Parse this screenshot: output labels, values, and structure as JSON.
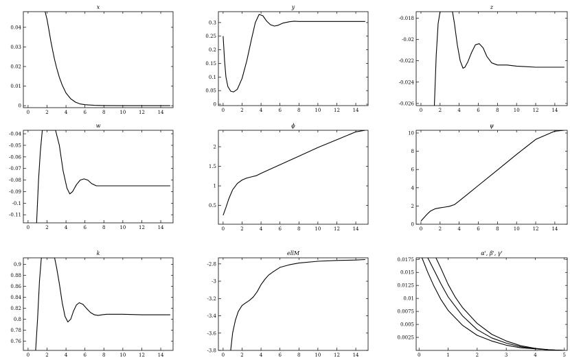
{
  "chart_data": [
    {
      "type": "line",
      "title": "x",
      "xlabel": "",
      "ylabel": "",
      "xlim": [
        -0.5,
        15.3
      ],
      "ylim": [
        -0.001,
        0.048
      ],
      "xticks": [
        0,
        2,
        4,
        6,
        8,
        10,
        12,
        14
      ],
      "xtick_labels": [
        "0",
        "2",
        "4",
        "6",
        "8",
        "10",
        "12",
        "14"
      ],
      "yticks": [
        0,
        0.01,
        0.02,
        0.03,
        0.04
      ],
      "ytick_labels": [
        "0",
        "0.01",
        "0.02",
        "0.03",
        "0.04"
      ],
      "series": [
        {
          "x": [
            1.8,
            2.0,
            2.2,
            2.4,
            2.6,
            2.8,
            3.0,
            3.3,
            3.6,
            4.0,
            4.5,
            5.0,
            5.5,
            6.0,
            7.0,
            8.0,
            10.0,
            12.0,
            15.0
          ],
          "y": [
            0.048,
            0.044,
            0.0385,
            0.033,
            0.028,
            0.0235,
            0.0195,
            0.0145,
            0.0105,
            0.0065,
            0.0035,
            0.0018,
            0.0009,
            0.0005,
            0.0002,
            0.0001,
            0.0,
            0.0,
            0.0
          ]
        }
      ]
    },
    {
      "type": "line",
      "title": "y",
      "xlabel": "",
      "ylabel": "",
      "xlim": [
        -0.5,
        15.3
      ],
      "ylim": [
        -0.005,
        0.34
      ],
      "xticks": [
        0,
        2,
        4,
        6,
        8,
        10,
        12,
        14
      ],
      "xtick_labels": [
        "0",
        "2",
        "4",
        "6",
        "8",
        "10",
        "12",
        "14"
      ],
      "yticks": [
        0,
        0.05,
        0.1,
        0.15,
        0.2,
        0.25,
        0.3
      ],
      "ytick_labels": [
        "0",
        "0.05",
        "0.1",
        "0.15",
        "0.2",
        "0.25",
        "0.3"
      ],
      "series": [
        {
          "x": [
            0.0,
            0.15,
            0.3,
            0.5,
            0.8,
            1.1,
            1.5,
            2.0,
            2.5,
            3.0,
            3.4,
            3.8,
            4.2,
            4.6,
            5.0,
            5.4,
            5.8,
            6.3,
            7.0,
            7.5,
            8.0,
            10.0,
            12.0,
            15.0
          ],
          "y": [
            0.25,
            0.16,
            0.1,
            0.065,
            0.048,
            0.045,
            0.055,
            0.095,
            0.16,
            0.24,
            0.3,
            0.33,
            0.325,
            0.305,
            0.292,
            0.287,
            0.29,
            0.298,
            0.303,
            0.305,
            0.304,
            0.304,
            0.304,
            0.304
          ]
        }
      ]
    },
    {
      "type": "line",
      "title": "z",
      "xlabel": "",
      "ylabel": "",
      "xlim": [
        -0.5,
        15.3
      ],
      "ylim": [
        -0.0262,
        -0.0174
      ],
      "xticks": [
        0,
        2,
        4,
        6,
        8,
        10,
        12,
        14
      ],
      "xtick_labels": [
        "0",
        "2",
        "4",
        "6",
        "8",
        "10",
        "12",
        "14"
      ],
      "yticks": [
        -0.018,
        -0.02,
        -0.022,
        -0.024,
        -0.026
      ],
      "ytick_labels": [
        "-0.018",
        "-0.02",
        "-0.022",
        "-0.024",
        "-0.026"
      ],
      "series": [
        {
          "x": [
            1.4,
            1.6,
            1.8,
            2.0,
            3.3,
            3.5,
            3.8,
            4.1,
            4.4,
            4.6,
            4.9,
            5.3,
            5.7,
            6.1,
            6.5,
            6.9,
            7.4,
            8.0,
            9.0,
            10.0,
            12.0,
            15.0
          ],
          "y": [
            -0.0262,
            -0.0215,
            -0.0185,
            -0.0174,
            -0.0174,
            -0.0185,
            -0.0205,
            -0.022,
            -0.0227,
            -0.0226,
            -0.0221,
            -0.0212,
            -0.0205,
            -0.0204,
            -0.0208,
            -0.0216,
            -0.0222,
            -0.0224,
            -0.0224,
            -0.0225,
            -0.0226,
            -0.0226
          ]
        }
      ]
    },
    {
      "type": "line",
      "title": "w",
      "xlabel": "",
      "ylabel": "",
      "xlim": [
        -0.5,
        15.3
      ],
      "ylim": [
        -0.117,
        -0.037
      ],
      "xticks": [
        0,
        2,
        4,
        6,
        8,
        10,
        12,
        14
      ],
      "xtick_labels": [
        "0",
        "2",
        "4",
        "6",
        "8",
        "10",
        "12",
        "14"
      ],
      "yticks": [
        -0.04,
        -0.05,
        -0.06,
        -0.07,
        -0.08,
        -0.09,
        -0.1,
        -0.11
      ],
      "ytick_labels": [
        "-0.04",
        "-0.05",
        "-0.06",
        "-0.07",
        "-0.08",
        "-0.09",
        "-0.1",
        "-0.11"
      ],
      "series": [
        {
          "x": [
            0.9,
            1.1,
            1.3,
            1.5,
            2.0,
            2.5,
            2.9,
            3.3,
            3.7,
            4.1,
            4.4,
            4.7,
            5.1,
            5.5,
            5.9,
            6.3,
            6.7,
            7.2,
            7.7,
            8.0,
            10.0,
            12.0,
            15.0
          ],
          "y": [
            -0.117,
            -0.08,
            -0.055,
            -0.037,
            -0.037,
            -0.037,
            -0.037,
            -0.05,
            -0.072,
            -0.087,
            -0.092,
            -0.09,
            -0.084,
            -0.08,
            -0.079,
            -0.08,
            -0.083,
            -0.085,
            -0.085,
            -0.085,
            -0.085,
            -0.085,
            -0.085
          ]
        }
      ]
    },
    {
      "type": "line",
      "title": "ϕ",
      "xlabel": "",
      "ylabel": "",
      "xlim": [
        -0.5,
        15.3
      ],
      "ylim": [
        0.02,
        2.42
      ],
      "xticks": [
        0,
        2,
        4,
        6,
        8,
        10,
        12,
        14
      ],
      "xtick_labels": [
        "0",
        "2",
        "4",
        "6",
        "8",
        "10",
        "12",
        "14"
      ],
      "yticks": [
        0.5,
        1,
        1.5,
        2
      ],
      "ytick_labels": [
        "0.5",
        "1",
        "1.5",
        "2"
      ],
      "series": [
        {
          "x": [
            0.0,
            0.3,
            0.6,
            1.0,
            1.5,
            2.0,
            2.5,
            3.0,
            3.5,
            4.0,
            5.0,
            6.0,
            8.0,
            10.0,
            12.0,
            14.0,
            15.0
          ],
          "y": [
            0.25,
            0.45,
            0.67,
            0.9,
            1.06,
            1.15,
            1.2,
            1.23,
            1.26,
            1.32,
            1.43,
            1.54,
            1.76,
            1.98,
            2.18,
            2.38,
            2.42
          ]
        }
      ]
    },
    {
      "type": "line",
      "title": "ψ",
      "xlabel": "",
      "ylabel": "",
      "xlim": [
        -0.5,
        15.3
      ],
      "ylim": [
        0.0,
        10.3
      ],
      "xticks": [
        0,
        2,
        4,
        6,
        8,
        10,
        12,
        14
      ],
      "xtick_labels": [
        "0",
        "2",
        "4",
        "6",
        "8",
        "10",
        "12",
        "14"
      ],
      "yticks": [
        0,
        2,
        4,
        6,
        8,
        10
      ],
      "ytick_labels": [
        "0",
        "2",
        "4",
        "6",
        "8",
        "10"
      ],
      "series": [
        {
          "x": [
            0.0,
            0.3,
            0.6,
            1.0,
            1.5,
            2.0,
            2.5,
            3.0,
            3.5,
            4.0,
            5.0,
            6.0,
            8.0,
            10.0,
            12.0,
            14.0,
            15.0
          ],
          "y": [
            0.35,
            0.7,
            1.05,
            1.45,
            1.7,
            1.8,
            1.88,
            1.97,
            2.15,
            2.55,
            3.4,
            4.25,
            5.95,
            7.65,
            9.3,
            10.2,
            10.3
          ]
        }
      ]
    },
    {
      "type": "line",
      "title": "k",
      "xlabel": "",
      "ylabel": "",
      "xlim": [
        -0.5,
        15.3
      ],
      "ylim": [
        0.743,
        0.912
      ],
      "xticks": [
        0,
        2,
        4,
        6,
        8,
        10,
        12,
        14
      ],
      "xtick_labels": [
        "0",
        "2",
        "4",
        "6",
        "8",
        "10",
        "12",
        "14"
      ],
      "yticks": [
        0.9,
        0.88,
        0.86,
        0.84,
        0.82,
        0.8,
        0.78,
        0.76
      ],
      "ytick_labels": [
        "0.9",
        "0.88",
        "0.86",
        "0.84",
        "0.82",
        "0.8",
        "0.78",
        "0.76"
      ],
      "series": [
        {
          "x": [
            0.8,
            1.0,
            1.2,
            1.4,
            2.8,
            3.0,
            3.3,
            3.6,
            3.9,
            4.2,
            4.5,
            4.8,
            5.1,
            5.4,
            5.8,
            6.2,
            6.6,
            7.0,
            7.4,
            7.8,
            8.3,
            9.0,
            10.0,
            12.0,
            15.0
          ],
          "y": [
            0.743,
            0.8,
            0.87,
            0.912,
            0.912,
            0.895,
            0.865,
            0.83,
            0.805,
            0.795,
            0.8,
            0.815,
            0.826,
            0.83,
            0.827,
            0.819,
            0.812,
            0.808,
            0.807,
            0.808,
            0.809,
            0.809,
            0.809,
            0.808,
            0.808
          ]
        }
      ]
    },
    {
      "type": "line",
      "title": "ellM",
      "xlabel": "",
      "ylabel": "",
      "xlim": [
        -0.5,
        15.3
      ],
      "ylim": [
        -3.8,
        -2.73
      ],
      "xticks": [
        0,
        2,
        4,
        6,
        8,
        10,
        12,
        14
      ],
      "xtick_labels": [
        "0",
        "2",
        "4",
        "6",
        "8",
        "10",
        "12",
        "14"
      ],
      "yticks": [
        -2.8,
        -3,
        -3.2,
        -3.4,
        -3.6,
        -3.8
      ],
      "ytick_labels": [
        "-2.8",
        "-3",
        "-3.2",
        "-3.4",
        "-3.6",
        "-3.8"
      ],
      "series": [
        {
          "x": [
            0.8,
            1.0,
            1.3,
            1.6,
            2.0,
            2.4,
            2.8,
            3.2,
            3.6,
            4.0,
            4.4,
            4.8,
            5.3,
            6.0,
            7.0,
            8.0,
            10.0,
            12.0,
            14.0,
            15.0
          ],
          "y": [
            -3.8,
            -3.6,
            -3.45,
            -3.35,
            -3.28,
            -3.25,
            -3.22,
            -3.18,
            -3.12,
            -3.04,
            -2.98,
            -2.93,
            -2.89,
            -2.84,
            -2.81,
            -2.79,
            -2.77,
            -2.76,
            -2.755,
            -2.75
          ]
        }
      ]
    },
    {
      "type": "line",
      "title": "α', β', γ'",
      "xlabel": "",
      "ylabel": "",
      "xlim": [
        -0.1,
        5.1
      ],
      "ylim": [
        0.0,
        0.0178
      ],
      "xticks": [
        0,
        1,
        2,
        3,
        4,
        5
      ],
      "xtick_labels": [
        "0",
        "1",
        "2",
        "3",
        "4",
        "5"
      ],
      "yticks": [
        0.0025,
        0.005,
        0.0075,
        0.01,
        0.0125,
        0.015,
        0.0175
      ],
      "ytick_labels": [
        "0.0025",
        "0.005",
        "0.0075",
        "0.01",
        "0.0125",
        "0.015",
        "0.0175"
      ],
      "series": [
        {
          "x": [
            0.1,
            0.3,
            0.5,
            0.75,
            1.0,
            1.5,
            2.0,
            2.5,
            3.0,
            3.5,
            4.0,
            4.5,
            5.0
          ],
          "y": [
            0.0178,
            0.015,
            0.0125,
            0.0098,
            0.0077,
            0.0048,
            0.0029,
            0.0018,
            0.001,
            0.0005,
            0.0003,
            0.0001,
            0.0
          ]
        },
        {
          "x": [
            0.3,
            0.5,
            0.75,
            1.0,
            1.5,
            2.0,
            2.5,
            3.0,
            3.5,
            4.0,
            4.5,
            5.0
          ],
          "y": [
            0.0178,
            0.0156,
            0.0128,
            0.0103,
            0.0066,
            0.004,
            0.0024,
            0.0014,
            0.0007,
            0.0003,
            0.0001,
            0.0
          ]
        },
        {
          "x": [
            0.58,
            0.75,
            1.0,
            1.25,
            1.5,
            2.0,
            2.5,
            3.0,
            3.5,
            4.0,
            4.5,
            5.0
          ],
          "y": [
            0.0178,
            0.0158,
            0.0127,
            0.0102,
            0.0082,
            0.0052,
            0.0031,
            0.0018,
            0.0009,
            0.0004,
            0.0001,
            0.0
          ]
        }
      ]
    }
  ]
}
